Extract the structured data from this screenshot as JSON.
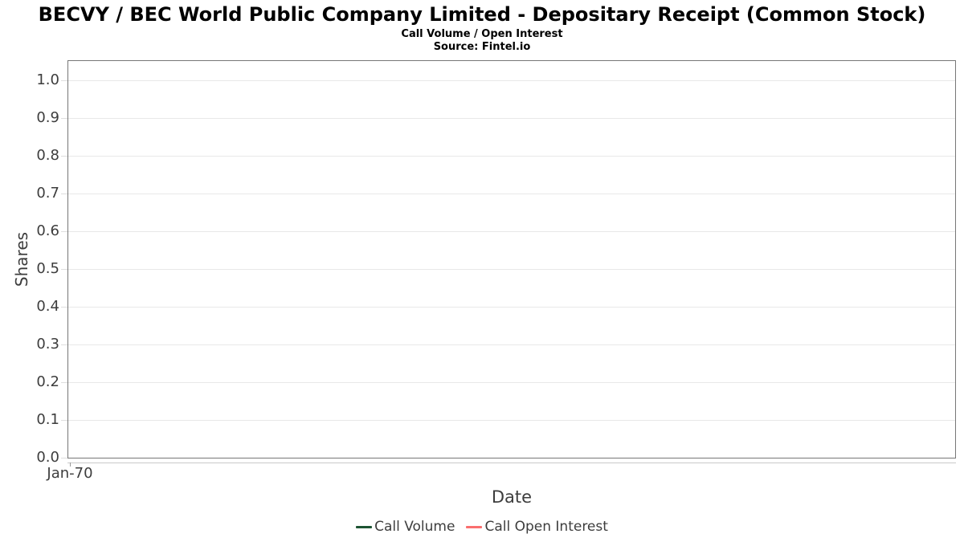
{
  "chart_data": {
    "type": "line",
    "title": "BECVY / BEC World Public Company Limited - Depositary Receipt (Common Stock)",
    "subtitle": "Call Volume / Open Interest",
    "source": "Source: Fintel.io",
    "xlabel": "Date",
    "ylabel": "Shares",
    "x_ticks": [
      "Jan-70"
    ],
    "y_ticks": [
      "0.0",
      "0.1",
      "0.2",
      "0.3",
      "0.4",
      "0.5",
      "0.6",
      "0.7",
      "0.8",
      "0.9",
      "1.0"
    ],
    "ylim": [
      0,
      1.05
    ],
    "grid": "horizontal",
    "legend_position": "bottom",
    "series": [
      {
        "name": "Call Volume",
        "color": "#1d5433",
        "values": []
      },
      {
        "name": "Call Open Interest",
        "color": "#fa6e6e",
        "values": []
      }
    ]
  }
}
